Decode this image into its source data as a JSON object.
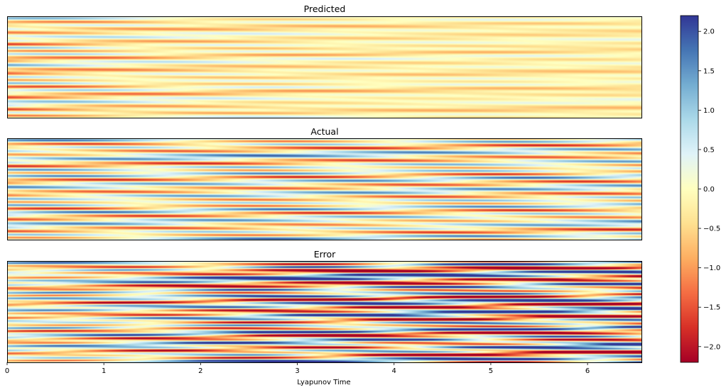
{
  "chart_data": {
    "type": "heatmap",
    "panels": [
      {
        "id": "predicted",
        "title": "Predicted"
      },
      {
        "id": "actual",
        "title": "Actual"
      },
      {
        "id": "error",
        "title": "Error"
      }
    ],
    "xlabel": "Lyapunov Time",
    "xlim": [
      0,
      6.55
    ],
    "xticks": [
      0,
      1,
      2,
      3,
      4,
      5,
      6
    ],
    "xtick_labels": [
      "0",
      "1",
      "2",
      "3",
      "4",
      "5",
      "6"
    ],
    "colorbar": {
      "colormap": "RdYlBu",
      "range": [
        -2.2,
        2.2
      ],
      "ticks": [
        2.0,
        1.5,
        1.0,
        0.5,
        0.0,
        -0.5,
        -1.0,
        -1.5,
        -2.0
      ],
      "tick_labels": [
        "2.0",
        "1.5",
        "1.0",
        "0.5",
        "0.0",
        "−0.5",
        "−1.0",
        "−1.5",
        "−2.0"
      ]
    }
  }
}
